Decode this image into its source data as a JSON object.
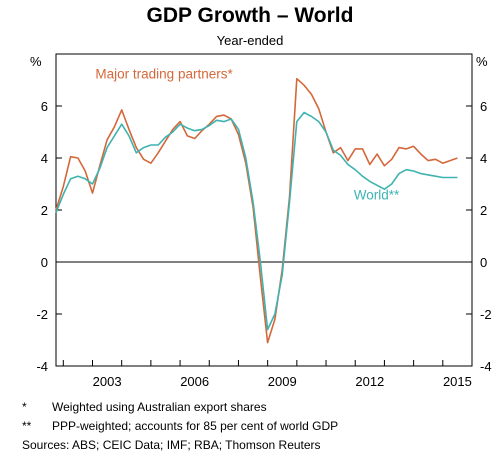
{
  "chart_data": {
    "type": "line",
    "title": "GDP Growth – World",
    "subtitle": "Year-ended",
    "ylabel_left": "%",
    "ylabel_right": "%",
    "ylim": [
      -4,
      8
    ],
    "yticks": [
      -4,
      -2,
      0,
      2,
      4,
      6
    ],
    "xlim": [
      2001.75,
      2016.0
    ],
    "xticks": [
      {
        "value": 2003,
        "label": "2003"
      },
      {
        "value": 2006,
        "label": "2006"
      },
      {
        "value": 2009,
        "label": "2009"
      },
      {
        "value": 2012,
        "label": "2012"
      },
      {
        "value": 2015,
        "label": "2015"
      }
    ],
    "grid": false,
    "series": [
      {
        "name": "Major trading partners*",
        "color": "#d4683a",
        "label_position": {
          "x": 2003.1,
          "y": 7.05
        },
        "points": [
          [
            2001.75,
            2.0
          ],
          [
            2002.0,
            2.9
          ],
          [
            2002.25,
            4.05
          ],
          [
            2002.5,
            4.0
          ],
          [
            2002.75,
            3.5
          ],
          [
            2003.0,
            2.65
          ],
          [
            2003.25,
            3.7
          ],
          [
            2003.5,
            4.7
          ],
          [
            2003.75,
            5.2
          ],
          [
            2004.0,
            5.85
          ],
          [
            2004.25,
            5.1
          ],
          [
            2004.5,
            4.4
          ],
          [
            2004.75,
            3.95
          ],
          [
            2005.0,
            3.8
          ],
          [
            2005.25,
            4.2
          ],
          [
            2005.5,
            4.65
          ],
          [
            2005.75,
            5.1
          ],
          [
            2006.0,
            5.4
          ],
          [
            2006.25,
            4.85
          ],
          [
            2006.5,
            4.75
          ],
          [
            2006.75,
            5.05
          ],
          [
            2007.0,
            5.3
          ],
          [
            2007.25,
            5.6
          ],
          [
            2007.5,
            5.65
          ],
          [
            2007.75,
            5.5
          ],
          [
            2008.0,
            4.9
          ],
          [
            2008.25,
            3.8
          ],
          [
            2008.5,
            2.1
          ],
          [
            2008.75,
            -0.6
          ],
          [
            2009.0,
            -3.1
          ],
          [
            2009.25,
            -2.2
          ],
          [
            2009.5,
            -0.3
          ],
          [
            2009.75,
            2.5
          ],
          [
            2010.0,
            7.05
          ],
          [
            2010.25,
            6.8
          ],
          [
            2010.5,
            6.45
          ],
          [
            2010.75,
            5.9
          ],
          [
            2011.0,
            5.0
          ],
          [
            2011.25,
            4.2
          ],
          [
            2011.5,
            4.4
          ],
          [
            2011.75,
            3.9
          ],
          [
            2012.0,
            4.35
          ],
          [
            2012.25,
            4.35
          ],
          [
            2012.5,
            3.75
          ],
          [
            2012.75,
            4.15
          ],
          [
            2013.0,
            3.7
          ],
          [
            2013.25,
            3.95
          ],
          [
            2013.5,
            4.4
          ],
          [
            2013.75,
            4.35
          ],
          [
            2014.0,
            4.45
          ],
          [
            2014.25,
            4.15
          ],
          [
            2014.5,
            3.9
          ],
          [
            2014.75,
            3.95
          ],
          [
            2015.0,
            3.8
          ],
          [
            2015.25,
            3.9
          ],
          [
            2015.5,
            4.0
          ]
        ]
      },
      {
        "name": "World**",
        "color": "#3eb3b0",
        "label_position": {
          "x": 2011.95,
          "y": 2.4
        },
        "points": [
          [
            2001.75,
            1.9
          ],
          [
            2002.0,
            2.6
          ],
          [
            2002.25,
            3.2
          ],
          [
            2002.5,
            3.3
          ],
          [
            2002.75,
            3.2
          ],
          [
            2003.0,
            3.0
          ],
          [
            2003.25,
            3.6
          ],
          [
            2003.5,
            4.4
          ],
          [
            2003.75,
            4.85
          ],
          [
            2004.0,
            5.3
          ],
          [
            2004.25,
            4.85
          ],
          [
            2004.5,
            4.2
          ],
          [
            2004.75,
            4.4
          ],
          [
            2005.0,
            4.5
          ],
          [
            2005.25,
            4.5
          ],
          [
            2005.5,
            4.8
          ],
          [
            2005.75,
            5.0
          ],
          [
            2006.0,
            5.3
          ],
          [
            2006.25,
            5.15
          ],
          [
            2006.5,
            5.05
          ],
          [
            2006.75,
            5.1
          ],
          [
            2007.0,
            5.25
          ],
          [
            2007.25,
            5.45
          ],
          [
            2007.5,
            5.4
          ],
          [
            2007.75,
            5.5
          ],
          [
            2008.0,
            5.1
          ],
          [
            2008.25,
            4.0
          ],
          [
            2008.5,
            2.3
          ],
          [
            2008.75,
            0.0
          ],
          [
            2009.0,
            -2.6
          ],
          [
            2009.25,
            -2.0
          ],
          [
            2009.5,
            -0.5
          ],
          [
            2009.75,
            2.3
          ],
          [
            2010.0,
            5.4
          ],
          [
            2010.25,
            5.75
          ],
          [
            2010.5,
            5.6
          ],
          [
            2010.75,
            5.4
          ],
          [
            2011.0,
            5.0
          ],
          [
            2011.25,
            4.3
          ],
          [
            2011.5,
            4.1
          ],
          [
            2011.75,
            3.75
          ],
          [
            2012.0,
            3.55
          ],
          [
            2012.25,
            3.3
          ],
          [
            2012.5,
            3.1
          ],
          [
            2012.75,
            2.95
          ],
          [
            2013.0,
            2.8
          ],
          [
            2013.25,
            3.0
          ],
          [
            2013.5,
            3.4
          ],
          [
            2013.75,
            3.55
          ],
          [
            2014.0,
            3.5
          ],
          [
            2014.25,
            3.4
          ],
          [
            2014.5,
            3.35
          ],
          [
            2014.75,
            3.3
          ],
          [
            2015.0,
            3.25
          ],
          [
            2015.25,
            3.25
          ],
          [
            2015.5,
            3.25
          ]
        ]
      }
    ]
  },
  "notes": [
    {
      "symbol": "*",
      "text": "Weighted using Australian export shares"
    },
    {
      "symbol": "**",
      "text": "PPP-weighted; accounts for 85 per cent of world GDP"
    }
  ],
  "sources": "Sources:  ABS; CEIC Data; IMF; RBA; Thomson Reuters"
}
